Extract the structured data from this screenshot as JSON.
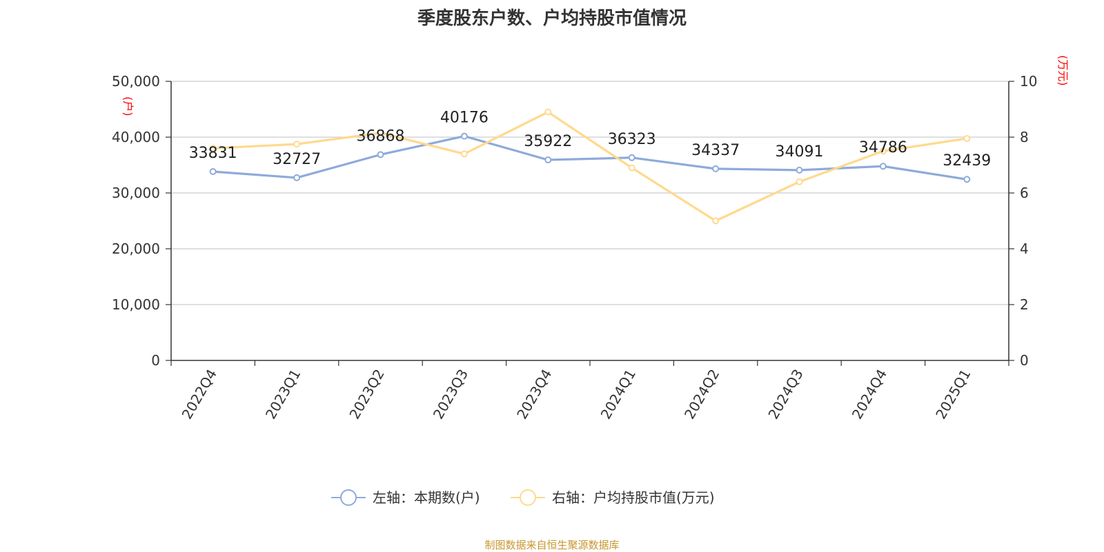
{
  "chart_data": {
    "type": "line",
    "title": "季度股东户数、户均持股市值情况",
    "categories": [
      "2022Q4",
      "2023Q1",
      "2023Q2",
      "2023Q3",
      "2023Q4",
      "2024Q1",
      "2024Q2",
      "2024Q3",
      "2024Q4",
      "2025Q1"
    ],
    "series": [
      {
        "name": "左轴：本期数(户)",
        "axis": "left",
        "color": "#8eaadb",
        "values": [
          33831,
          32727,
          36868,
          40176,
          35922,
          36323,
          34337,
          34091,
          34786,
          32439
        ],
        "labels": [
          "33831",
          "32727",
          "36868",
          "40176",
          "35922",
          "36323",
          "34337",
          "34091",
          "34786",
          "32439"
        ]
      },
      {
        "name": "右轴：户均持股市值(万元)",
        "axis": "right",
        "color": "#ffd98e",
        "values": [
          7.6,
          7.75,
          8.15,
          7.4,
          8.9,
          6.9,
          5.0,
          6.4,
          7.5,
          7.95
        ]
      }
    ],
    "left_axis": {
      "unit": "(户)",
      "ylim": [
        0,
        50000
      ],
      "ticks": [
        0,
        10000,
        20000,
        30000,
        40000,
        50000
      ],
      "tick_labels": [
        "0",
        "10,000",
        "20,000",
        "30,000",
        "40,000",
        "50,000"
      ]
    },
    "right_axis": {
      "unit": "(万元)",
      "ylim": [
        0,
        10
      ],
      "ticks": [
        0,
        2,
        4,
        6,
        8,
        10
      ],
      "tick_labels": [
        "0",
        "2",
        "4",
        "6",
        "8",
        "10"
      ]
    },
    "grid": true,
    "legend_position": "bottom-center"
  },
  "source_note": "制图数据来自恒生聚源数据库"
}
